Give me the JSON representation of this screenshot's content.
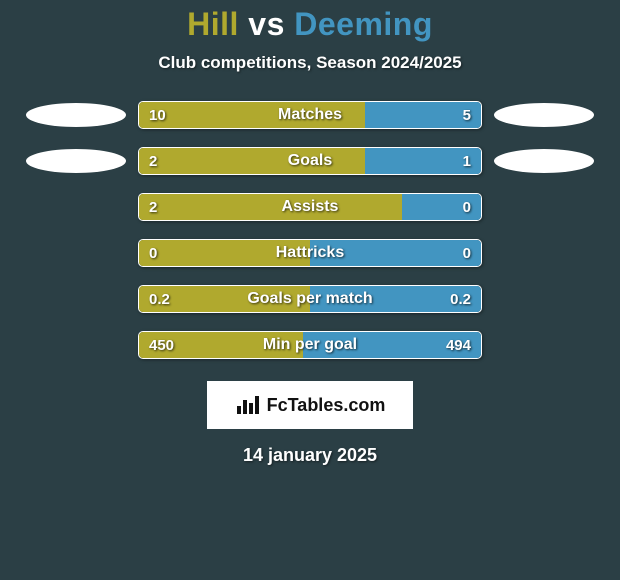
{
  "background_color": "#2b3f45",
  "title": {
    "player1": "Hill",
    "vs": "vs",
    "player2": "Deeming",
    "player1_color": "#b0a92e",
    "vs_color": "#ffffff",
    "player2_color": "#4295c1"
  },
  "subtitle": "Club competitions, Season 2024/2025",
  "bar_colors": {
    "left": "#b0a92e",
    "right": "#4295c1",
    "border": "#ffffff",
    "text": "#ffffff"
  },
  "stats": [
    {
      "label": "Matches",
      "left_val": "10",
      "right_val": "5",
      "left_pct": 66,
      "right_pct": 34,
      "show_badges": true
    },
    {
      "label": "Goals",
      "left_val": "2",
      "right_val": "1",
      "left_pct": 66,
      "right_pct": 34,
      "show_badges": true
    },
    {
      "label": "Assists",
      "left_val": "2",
      "right_val": "0",
      "left_pct": 77,
      "right_pct": 23,
      "show_badges": false
    },
    {
      "label": "Hattricks",
      "left_val": "0",
      "right_val": "0",
      "left_pct": 50,
      "right_pct": 50,
      "show_badges": false
    },
    {
      "label": "Goals per match",
      "left_val": "0.2",
      "right_val": "0.2",
      "left_pct": 50,
      "right_pct": 50,
      "show_badges": false
    },
    {
      "label": "Min per goal",
      "left_val": "450",
      "right_val": "494",
      "left_pct": 48,
      "right_pct": 52,
      "show_badges": false
    }
  ],
  "footer": {
    "logo_text": "FcTables.com",
    "logo_bg": "#ffffff",
    "logo_text_color": "#111111"
  },
  "date": "14 january 2025"
}
